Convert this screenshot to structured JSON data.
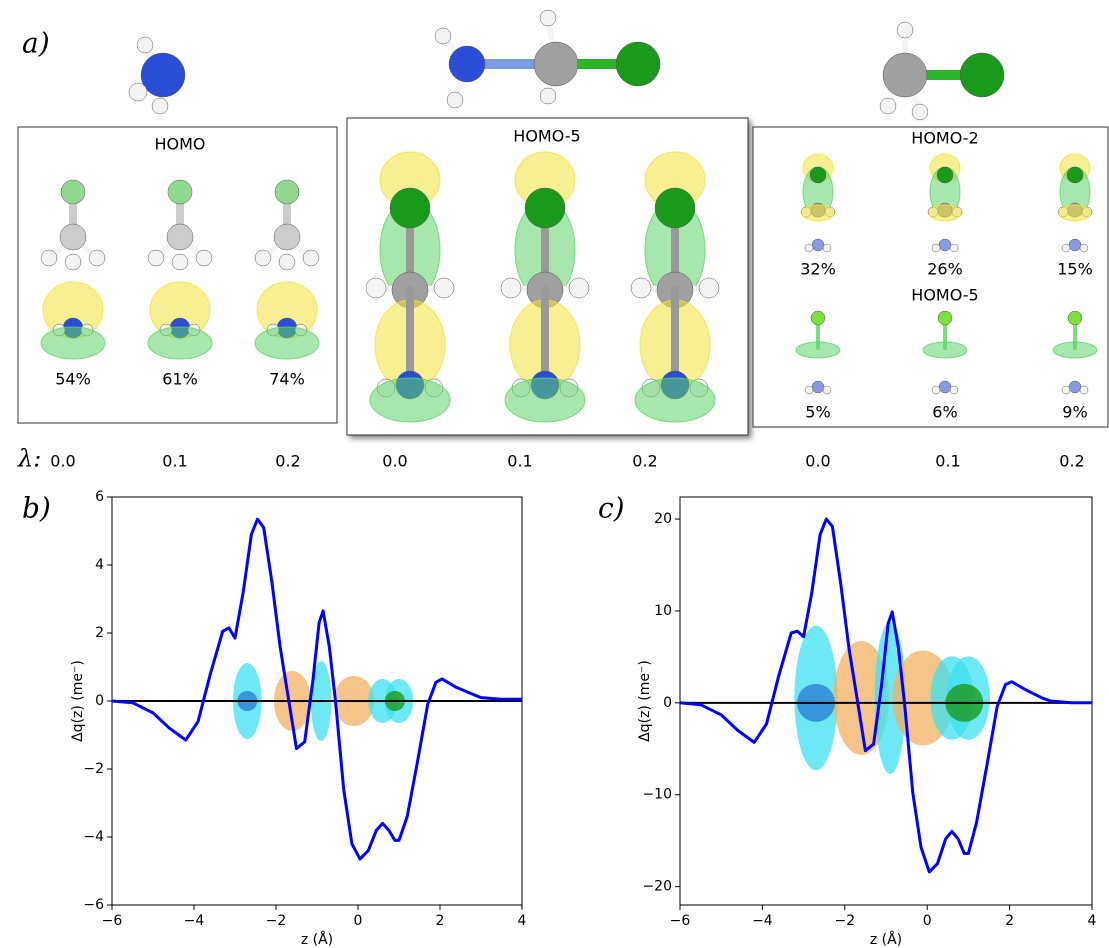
{
  "panel_a": {
    "label": "a)",
    "lambda_label": "λ:",
    "lambdas": [
      "0.0",
      "0.1",
      "0.2",
      "0.0",
      "0.1",
      "0.2",
      "0.0",
      "0.1",
      "0.2"
    ],
    "box1": {
      "title": "HOMO",
      "percents": [
        "54%",
        "61%",
        "74%"
      ]
    },
    "box2": {
      "title": "HOMO-5"
    },
    "box3": {
      "title": "HOMO-2",
      "percents": [
        "32%",
        "26%",
        "15%"
      ],
      "title2": "HOMO-5",
      "percents2": [
        "5%",
        "6%",
        "9%"
      ]
    }
  },
  "chart_data": [
    {
      "type": "line",
      "label": "b)",
      "x_label": "z (Å)",
      "y_label": "Δq(z) (me⁻)",
      "color": "#0000ff",
      "x": [
        -6,
        -5.5,
        -5,
        -4.6,
        -4.2,
        -3.9,
        -3.6,
        -3.3,
        -3.15,
        -3.0,
        -2.8,
        -2.6,
        -2.45,
        -2.3,
        -2.1,
        -1.9,
        -1.7,
        -1.5,
        -1.3,
        -1.1,
        -0.95,
        -0.85,
        -0.7,
        -0.55,
        -0.35,
        -0.15,
        0.05,
        0.25,
        0.45,
        0.6,
        0.75,
        0.9,
        1.0,
        1.2,
        1.45,
        1.7,
        1.9,
        2.05,
        2.4,
        2.8,
        3.0,
        3.5,
        4
      ],
      "values": [
        0,
        -0.05,
        -0.35,
        -0.8,
        -1.15,
        -0.6,
        0.8,
        2.05,
        2.15,
        1.85,
        3.2,
        4.9,
        5.35,
        5.1,
        3.5,
        1.6,
        0.1,
        -1.4,
        -1.2,
        0.6,
        2.3,
        2.65,
        1.6,
        0,
        -2.6,
        -4.2,
        -4.65,
        -4.4,
        -3.8,
        -3.6,
        -3.8,
        -4.1,
        -4.1,
        -3.4,
        -1.8,
        -0.1,
        0.55,
        0.65,
        0.4,
        0.2,
        0.1,
        0.05,
        0.05
      ],
      "xlim": [
        -6,
        4
      ],
      "ylim": [
        -6,
        6
      ],
      "xticks": [
        {
          "value": -6,
          "label": "−6"
        },
        {
          "value": -4,
          "label": "−4"
        },
        {
          "value": -2,
          "label": "−2"
        },
        0,
        2,
        4
      ],
      "yticks": [
        {
          "value": -6,
          "label": "−6"
        },
        {
          "value": -4,
          "label": "−4"
        },
        {
          "value": -2,
          "label": "−2"
        },
        0,
        2,
        4,
        6
      ],
      "hlines": [
        0
      ],
      "hline_color": "#000000"
    },
    {
      "type": "line",
      "label": "c)",
      "x_label": "z (Å)",
      "y_label": "Δq(z) (me⁻)",
      "color": "#0000ff",
      "x": [
        -6,
        -5.5,
        -5,
        -4.6,
        -4.2,
        -3.9,
        -3.6,
        -3.3,
        -3.15,
        -3.0,
        -2.8,
        -2.6,
        -2.45,
        -2.3,
        -2.1,
        -1.9,
        -1.7,
        -1.5,
        -1.3,
        -1.1,
        -0.95,
        -0.85,
        -0.7,
        -0.55,
        -0.35,
        -0.15,
        0.05,
        0.25,
        0.45,
        0.6,
        0.75,
        0.9,
        1.0,
        1.2,
        1.45,
        1.7,
        1.9,
        2.05,
        2.4,
        2.8,
        3.0,
        3.5,
        4
      ],
      "values": [
        0,
        -0.2,
        -1.3,
        -3.0,
        -4.3,
        -2.3,
        3.0,
        7.6,
        7.8,
        7.2,
        12,
        18.3,
        20,
        19.2,
        13,
        6,
        0.4,
        -5.2,
        -4.5,
        2.2,
        8.6,
        9.9,
        6,
        0,
        -9.8,
        -15.7,
        -18.4,
        -17.5,
        -14.8,
        -14,
        -14.8,
        -16.4,
        -16.4,
        -13,
        -6.8,
        -0.4,
        2,
        2.3,
        1.4,
        0.5,
        0.2,
        0,
        0
      ],
      "xlim": [
        -6,
        4
      ],
      "ylim": [
        -22,
        22.4
      ],
      "xticks": [
        {
          "value": -6,
          "label": "−6"
        },
        {
          "value": -4,
          "label": "−4"
        },
        {
          "value": -2,
          "label": "−2"
        },
        0,
        2,
        4
      ],
      "yticks": [
        {
          "value": -20,
          "label": "−20"
        },
        {
          "value": -10,
          "label": "−10"
        },
        0,
        10,
        20
      ],
      "hlines": [
        0
      ],
      "hline_color": "#000000"
    }
  ]
}
